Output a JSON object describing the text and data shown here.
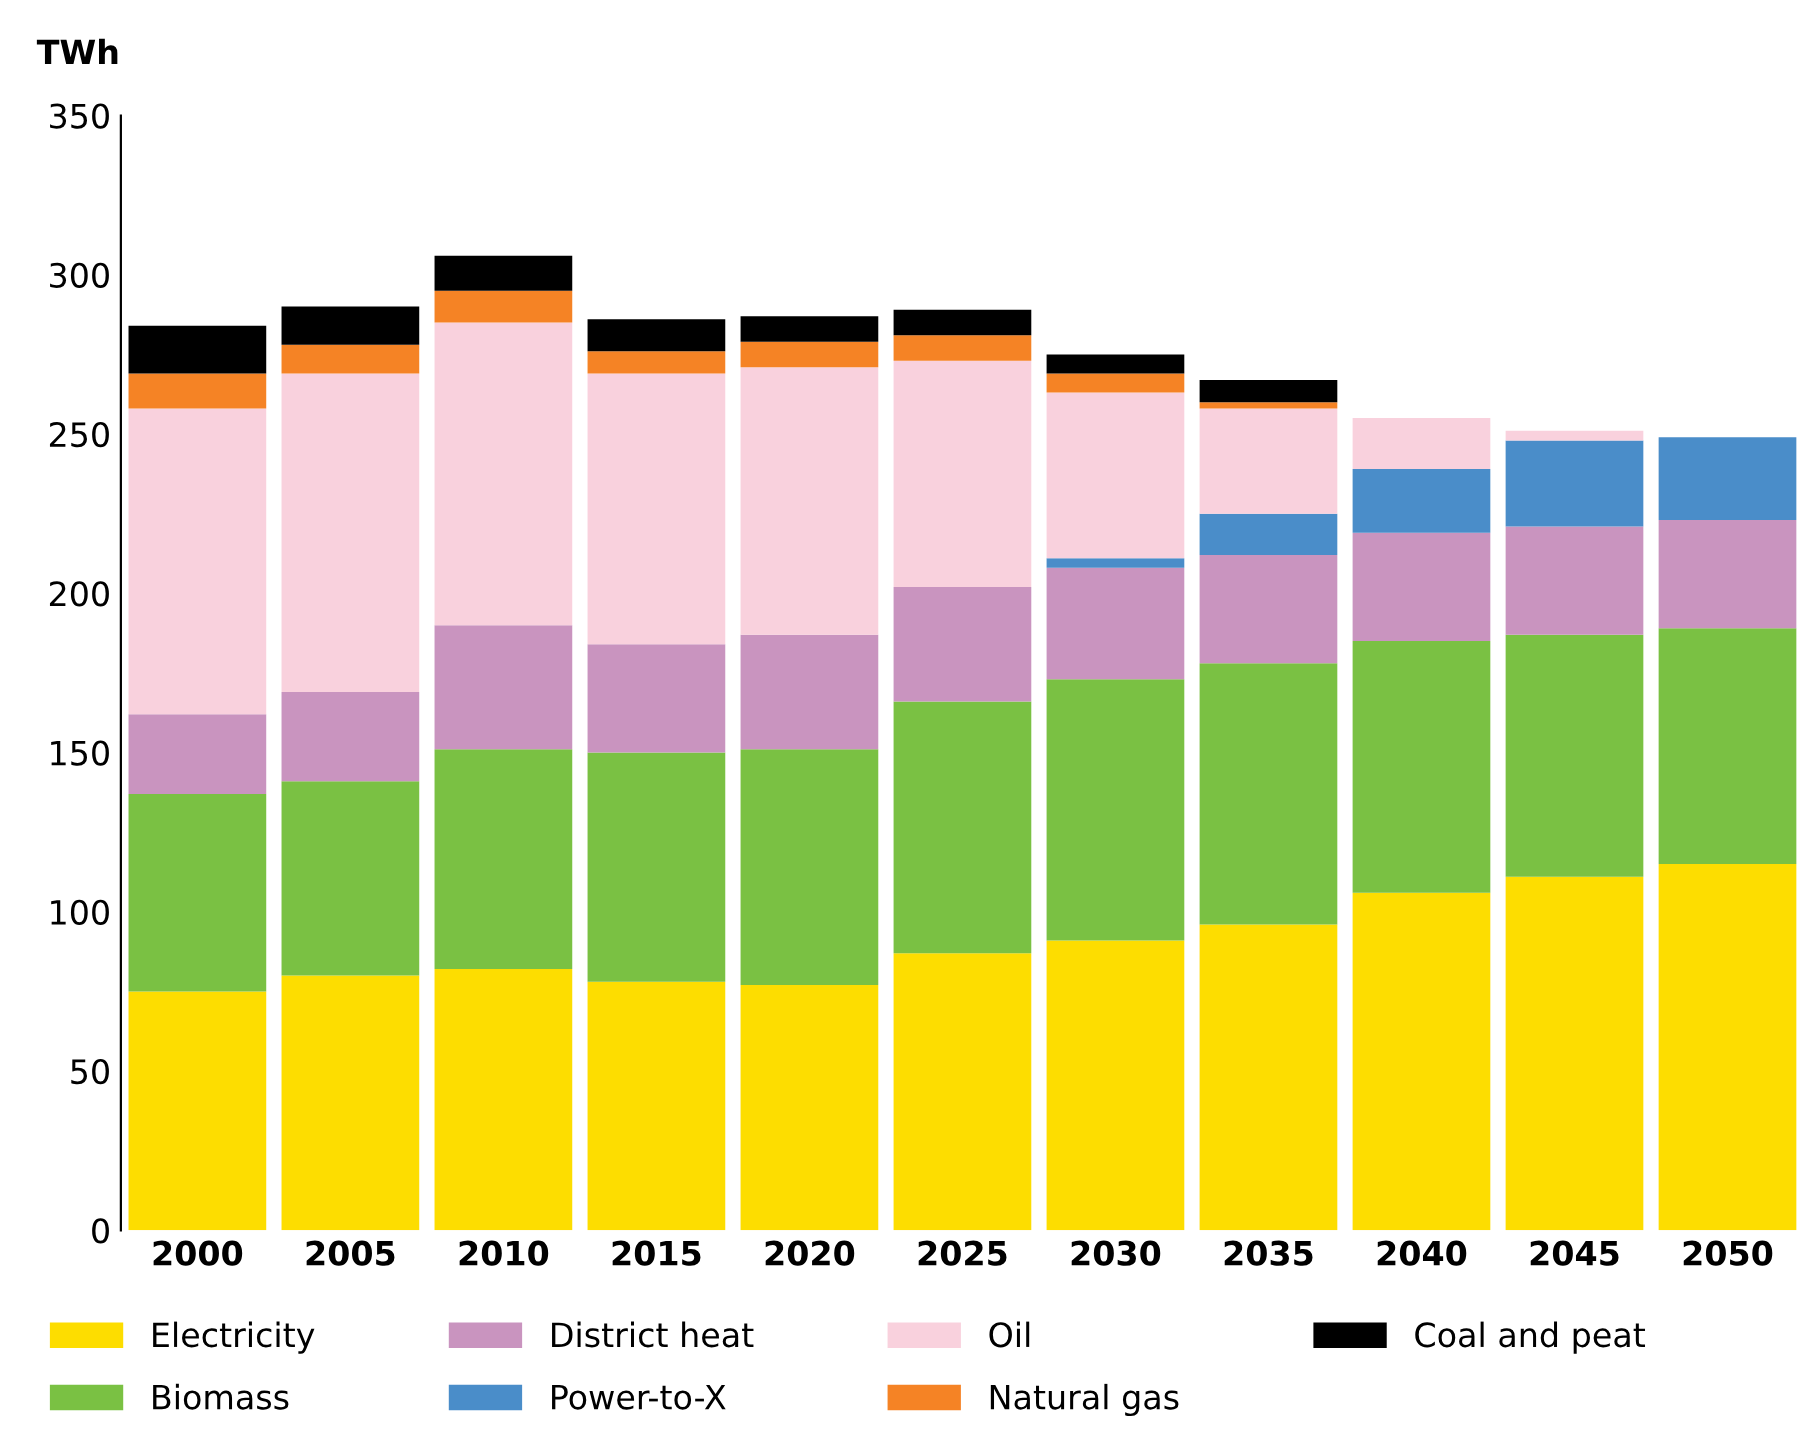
{
  "chart_data": {
    "type": "bar",
    "stacked": true,
    "ylabel": "TWh",
    "categories": [
      "2000",
      "2005",
      "2010",
      "2015",
      "2020",
      "2025",
      "2030",
      "2035",
      "2040",
      "2045",
      "2050"
    ],
    "series": [
      {
        "name": "Electricity",
        "color": "#fddd00",
        "values": [
          75,
          80,
          82,
          78,
          77,
          87,
          91,
          96,
          106,
          111,
          115
        ]
      },
      {
        "name": "Biomass",
        "color": "#7ac143",
        "values": [
          62,
          61,
          69,
          72,
          74,
          79,
          82,
          82,
          79,
          76,
          74
        ]
      },
      {
        "name": "District heat",
        "color": "#c994bf",
        "values": [
          25,
          28,
          39,
          34,
          36,
          36,
          35,
          34,
          34,
          34,
          34
        ]
      },
      {
        "name": "Power-to-X",
        "color": "#4a8dc9",
        "values": [
          0,
          0,
          0,
          0,
          0,
          0,
          3,
          13,
          20,
          27,
          26
        ]
      },
      {
        "name": "Oil",
        "color": "#f9d1dd",
        "values": [
          96,
          100,
          95,
          85,
          84,
          71,
          52,
          33,
          16,
          3,
          0
        ]
      },
      {
        "name": "Natural gas",
        "color": "#f58325",
        "values": [
          11,
          9,
          10,
          7,
          8,
          8,
          6,
          2,
          0,
          0,
          0
        ]
      },
      {
        "name": "Coal and peat",
        "color": "#000000",
        "values": [
          15,
          12,
          11,
          10,
          8,
          8,
          6,
          7,
          0,
          0,
          0
        ]
      }
    ],
    "ylim": [
      0,
      350
    ],
    "yticks": [
      0,
      50,
      100,
      150,
      200,
      250,
      300,
      350
    ],
    "legend": "bottom"
  }
}
